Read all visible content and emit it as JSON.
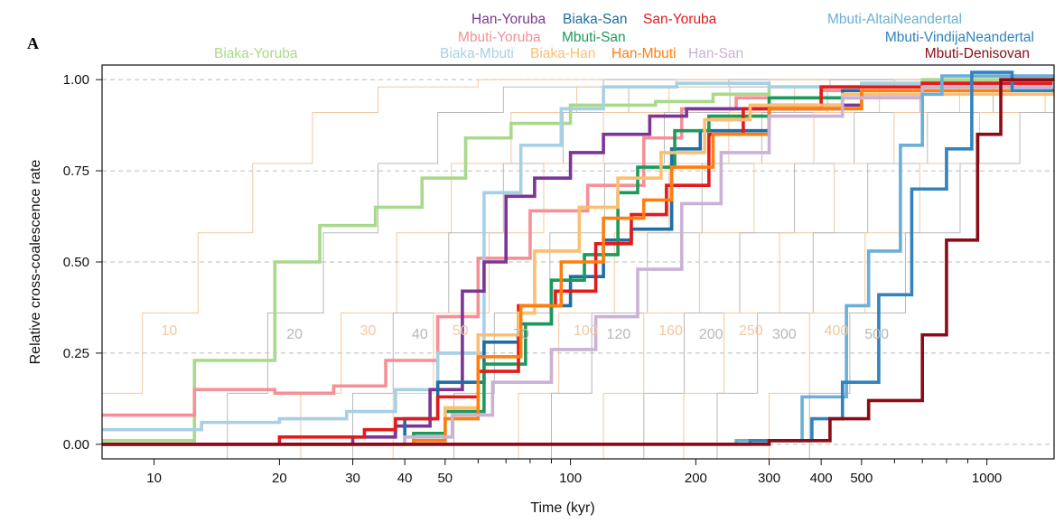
{
  "panel_label": "A",
  "chart_data": {
    "type": "line",
    "step": true,
    "xscale": "log",
    "xlabel": "Time (kyr)",
    "ylabel": "Relative cross-coalescence rate",
    "xlim": [
      7.5,
      1450
    ],
    "ylim": [
      -0.04,
      1.04
    ],
    "xticks": [
      10,
      20,
      30,
      40,
      50,
      100,
      200,
      300,
      400,
      500,
      1000
    ],
    "xminor": [
      60,
      70,
      80,
      90,
      600,
      700,
      800,
      900
    ],
    "yticks": [
      0.0,
      0.25,
      0.5,
      0.75,
      1.0
    ],
    "ytick_labels": [
      "0.00",
      "0.25",
      "0.50",
      "0.75",
      "1.00"
    ],
    "grid": "dashed horizontal",
    "generation_curves": [
      {
        "label": "10",
        "start": 7.5,
        "color": "#f1c8a0"
      },
      {
        "label": "20",
        "start": 15,
        "color": "#b8b8b8"
      },
      {
        "label": "30",
        "start": 22.5,
        "color": "#f1c8a0"
      },
      {
        "label": "40",
        "start": 30,
        "color": "#b8b8b8"
      },
      {
        "label": "50",
        "start": 37.5,
        "color": "#f1c8a0"
      },
      {
        "label": "70",
        "start": 52.5,
        "color": "#b8b8b8"
      },
      {
        "label": "100",
        "start": 75,
        "color": "#f1c8a0"
      },
      {
        "label": "120",
        "start": 90,
        "color": "#b8b8b8"
      },
      {
        "label": "160",
        "start": 120,
        "color": "#f1c8a0"
      },
      {
        "label": "200",
        "start": 150,
        "color": "#b8b8b8"
      },
      {
        "label": "250",
        "start": 187,
        "color": "#f1c8a0"
      },
      {
        "label": "300",
        "start": 225,
        "color": "#b8b8b8"
      },
      {
        "label": "400",
        "start": 300,
        "color": "#f1c8a0"
      },
      {
        "label": "500",
        "start": 375,
        "color": "#b8b8b8"
      }
    ],
    "series": [
      {
        "name": "Biaka-Yoruba",
        "color": "#a9d98b",
        "points": [
          [
            7.5,
            0.01
          ],
          [
            12.5,
            0.23
          ],
          [
            19.5,
            0.5
          ],
          [
            25,
            0.6
          ],
          [
            34,
            0.65
          ],
          [
            44,
            0.73
          ],
          [
            56,
            0.84
          ],
          [
            72,
            0.88
          ],
          [
            100,
            0.93
          ],
          [
            160,
            0.94
          ],
          [
            220,
            0.96
          ],
          [
            300,
            0.98
          ],
          [
            500,
            0.99
          ],
          [
            700,
            1.0
          ],
          [
            1450,
            1.0
          ]
        ]
      },
      {
        "name": "Mbuti-Yoruba",
        "color": "#f59097",
        "points": [
          [
            7.5,
            0.08
          ],
          [
            12.5,
            0.15
          ],
          [
            19.5,
            0.14
          ],
          [
            27,
            0.16
          ],
          [
            36,
            0.23
          ],
          [
            48,
            0.35
          ],
          [
            60,
            0.51
          ],
          [
            80,
            0.64
          ],
          [
            110,
            0.71
          ],
          [
            150,
            0.84
          ],
          [
            185,
            0.92
          ],
          [
            250,
            0.95
          ],
          [
            400,
            0.97
          ],
          [
            700,
            0.99
          ],
          [
            1450,
            1.0
          ]
        ]
      },
      {
        "name": "Biaka-Mbuti",
        "color": "#a6d0e4",
        "points": [
          [
            7.5,
            0.04
          ],
          [
            13,
            0.06
          ],
          [
            20,
            0.07
          ],
          [
            29,
            0.09
          ],
          [
            38,
            0.15
          ],
          [
            48,
            0.25
          ],
          [
            62,
            0.69
          ],
          [
            76,
            0.82
          ],
          [
            95,
            0.92
          ],
          [
            120,
            0.98
          ],
          [
            180,
            0.99
          ],
          [
            300,
            0.98
          ],
          [
            500,
            0.99
          ],
          [
            1450,
            1.0
          ]
        ]
      },
      {
        "name": "Han-Yoruba",
        "color": "#7b3594",
        "points": [
          [
            7.5,
            0.0
          ],
          [
            30,
            0.02
          ],
          [
            38,
            0.05
          ],
          [
            46,
            0.15
          ],
          [
            55,
            0.42
          ],
          [
            62,
            0.5
          ],
          [
            70,
            0.68
          ],
          [
            82,
            0.73
          ],
          [
            100,
            0.8
          ],
          [
            120,
            0.85
          ],
          [
            155,
            0.9
          ],
          [
            190,
            0.92
          ],
          [
            300,
            0.93
          ],
          [
            500,
            0.96
          ],
          [
            700,
            0.99
          ],
          [
            1450,
            1.0
          ]
        ]
      },
      {
        "name": "Biaka-San",
        "color": "#1f6ea6",
        "points": [
          [
            7.5,
            0.0
          ],
          [
            40,
            0.07
          ],
          [
            48,
            0.17
          ],
          [
            62,
            0.28
          ],
          [
            76,
            0.33
          ],
          [
            90,
            0.38
          ],
          [
            100,
            0.46
          ],
          [
            120,
            0.56
          ],
          [
            140,
            0.59
          ],
          [
            175,
            0.81
          ],
          [
            205,
            0.86
          ],
          [
            300,
            0.92
          ],
          [
            450,
            0.97
          ],
          [
            700,
            0.98
          ],
          [
            1450,
            1.0
          ]
        ]
      },
      {
        "name": "Mbuti-San",
        "color": "#1d9a5b",
        "points": [
          [
            7.5,
            0.0
          ],
          [
            42,
            0.03
          ],
          [
            50,
            0.09
          ],
          [
            62,
            0.22
          ],
          [
            78,
            0.33
          ],
          [
            90,
            0.45
          ],
          [
            108,
            0.52
          ],
          [
            130,
            0.69
          ],
          [
            145,
            0.76
          ],
          [
            178,
            0.86
          ],
          [
            215,
            0.9
          ],
          [
            300,
            0.95
          ],
          [
            500,
            0.97
          ],
          [
            1450,
            1.0
          ]
        ]
      },
      {
        "name": "San-Yoruba",
        "color": "#e31a1c",
        "points": [
          [
            7.5,
            0.0
          ],
          [
            20,
            0.02
          ],
          [
            32,
            0.04
          ],
          [
            38,
            0.07
          ],
          [
            48,
            0.13
          ],
          [
            60,
            0.2
          ],
          [
            75,
            0.38
          ],
          [
            92,
            0.42
          ],
          [
            115,
            0.55
          ],
          [
            140,
            0.63
          ],
          [
            170,
            0.71
          ],
          [
            215,
            0.85
          ],
          [
            260,
            0.92
          ],
          [
            400,
            0.98
          ],
          [
            700,
            0.99
          ],
          [
            1450,
            1.0
          ]
        ]
      },
      {
        "name": "Biaka-Han",
        "color": "#fdbf6f",
        "points": [
          [
            7.5,
            0.0
          ],
          [
            42,
            0.02
          ],
          [
            50,
            0.1
          ],
          [
            60,
            0.3
          ],
          [
            75,
            0.36
          ],
          [
            82,
            0.53
          ],
          [
            105,
            0.65
          ],
          [
            130,
            0.73
          ],
          [
            165,
            0.8
          ],
          [
            210,
            0.89
          ],
          [
            270,
            0.93
          ],
          [
            450,
            0.96
          ],
          [
            1450,
            1.0
          ]
        ]
      },
      {
        "name": "Han-Mbuti",
        "color": "#ff7f0e",
        "points": [
          [
            7.5,
            0.0
          ],
          [
            42,
            0.01
          ],
          [
            50,
            0.07
          ],
          [
            60,
            0.24
          ],
          [
            76,
            0.38
          ],
          [
            95,
            0.5
          ],
          [
            120,
            0.62
          ],
          [
            150,
            0.67
          ],
          [
            175,
            0.76
          ],
          [
            220,
            0.85
          ],
          [
            300,
            0.92
          ],
          [
            500,
            0.97
          ],
          [
            1450,
            1.0
          ]
        ]
      },
      {
        "name": "Han-San",
        "color": "#cab2d6",
        "points": [
          [
            7.5,
            0.0
          ],
          [
            40,
            0.02
          ],
          [
            52,
            0.08
          ],
          [
            65,
            0.17
          ],
          [
            90,
            0.26
          ],
          [
            115,
            0.35
          ],
          [
            145,
            0.48
          ],
          [
            185,
            0.66
          ],
          [
            230,
            0.8
          ],
          [
            300,
            0.9
          ],
          [
            450,
            0.95
          ],
          [
            700,
            0.98
          ],
          [
            1450,
            1.0
          ]
        ]
      },
      {
        "name": "Mbuti-AltaiNeandertal",
        "color": "#6baed6",
        "points": [
          [
            7.5,
            0.0
          ],
          [
            250,
            0.01
          ],
          [
            360,
            0.13
          ],
          [
            460,
            0.38
          ],
          [
            520,
            0.53
          ],
          [
            620,
            0.82
          ],
          [
            700,
            0.96
          ],
          [
            780,
            1.01
          ],
          [
            1450,
            1.0
          ]
        ]
      },
      {
        "name": "Mbuti-VindijaNeandertal",
        "color": "#3182bd",
        "points": [
          [
            7.5,
            0.0
          ],
          [
            270,
            0.01
          ],
          [
            380,
            0.07
          ],
          [
            450,
            0.17
          ],
          [
            550,
            0.41
          ],
          [
            660,
            0.7
          ],
          [
            800,
            0.81
          ],
          [
            920,
            1.02
          ],
          [
            1150,
            0.97
          ],
          [
            1450,
            0.97
          ]
        ]
      },
      {
        "name": "Mbuti-Denisovan",
        "color": "#8c0b14",
        "points": [
          [
            7.5,
            0.0
          ],
          [
            300,
            0.01
          ],
          [
            420,
            0.07
          ],
          [
            520,
            0.12
          ],
          [
            700,
            0.3
          ],
          [
            800,
            0.56
          ],
          [
            950,
            0.85
          ],
          [
            1080,
            1.0
          ],
          [
            1450,
            1.0
          ]
        ]
      }
    ]
  },
  "legend": [
    {
      "text": "Han-Yoruba",
      "color": "#7b3594",
      "series": "Han-Yoruba"
    },
    {
      "text": "Biaka-San",
      "color": "#1f6ea6",
      "series": "Biaka-San"
    },
    {
      "text": "San-Yoruba",
      "color": "#e31a1c",
      "series": "San-Yoruba"
    },
    {
      "text": "Mbuti-Yoruba",
      "color": "#f59097",
      "series": "Mbuti-Yoruba"
    },
    {
      "text": "Mbuti-San",
      "color": "#1d9a5b",
      "series": "Mbuti-San"
    },
    {
      "text": "Biaka-Yoruba",
      "color": "#a9d98b",
      "series": "Biaka-Yoruba"
    },
    {
      "text": "Biaka-Mbuti",
      "color": "#a6d0e4",
      "series": "Biaka-Mbuti"
    },
    {
      "text": "Biaka-Han",
      "color": "#fdbf6f",
      "series": "Biaka-Han"
    },
    {
      "text": "Han-Mbuti",
      "color": "#ff7f0e",
      "series": "Han-Mbuti"
    },
    {
      "text": "Han-San",
      "color": "#cab2d6",
      "series": "Han-San"
    },
    {
      "text": "Mbuti-AltaiNeandertal",
      "color": "#6baed6",
      "series": "Mbuti-AltaiNeandertal"
    },
    {
      "text": "Mbuti-VindijaNeandertal",
      "color": "#3182bd",
      "series": "Mbuti-VindijaNeandertal"
    },
    {
      "text": "Mbuti-Denisovan",
      "color": "#8c0b14",
      "series": "Mbuti-Denisovan"
    }
  ]
}
